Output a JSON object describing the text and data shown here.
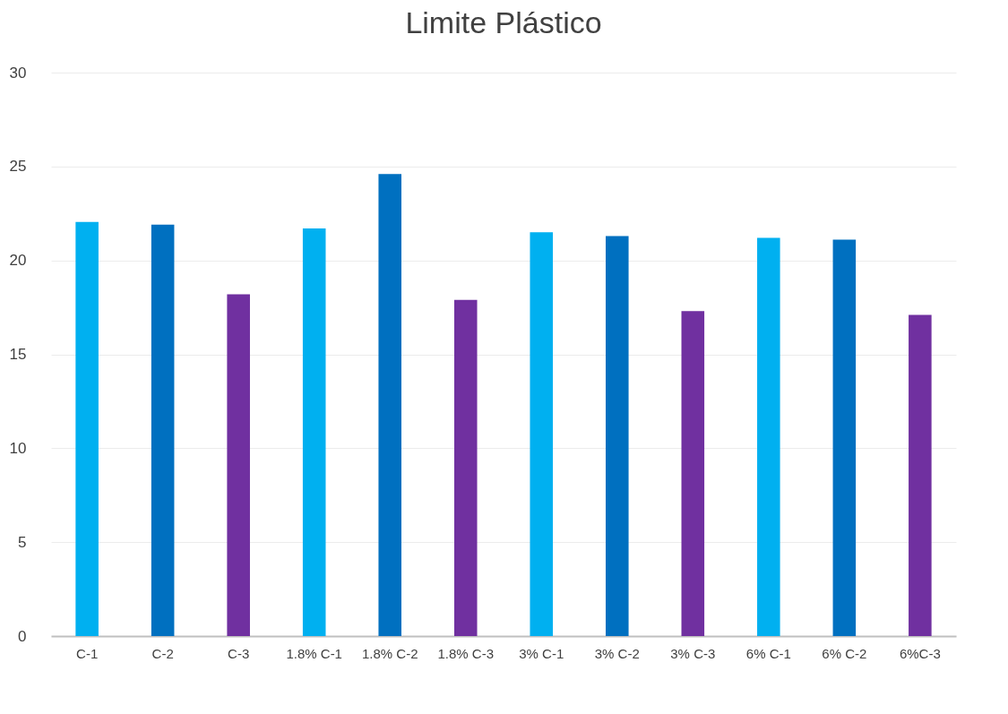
{
  "chart_data": {
    "type": "bar",
    "title": "Limite Plástico",
    "categories": [
      "C-1",
      "C-2",
      "C-3",
      "1.8% C-1",
      "1.8% C-2",
      "1.8% C-3",
      "3% C-1",
      "3% C-2",
      "3% C-3",
      "6% C-1",
      "6% C-2",
      "6%C-3"
    ],
    "values": [
      22.05,
      21.9,
      18.2,
      21.7,
      24.6,
      17.9,
      21.5,
      21.3,
      17.3,
      21.2,
      21.1,
      17.1
    ],
    "colors": [
      "#00b0f0",
      "#0070c0",
      "#7030a0",
      "#00b0f0",
      "#0070c0",
      "#7030a0",
      "#00b0f0",
      "#0070c0",
      "#7030a0",
      "#00b0f0",
      "#0070c0",
      "#7030a0"
    ],
    "ylim": [
      0,
      30
    ],
    "yticks": [
      0,
      5,
      10,
      15,
      20,
      25,
      30
    ],
    "grid": "y"
  }
}
